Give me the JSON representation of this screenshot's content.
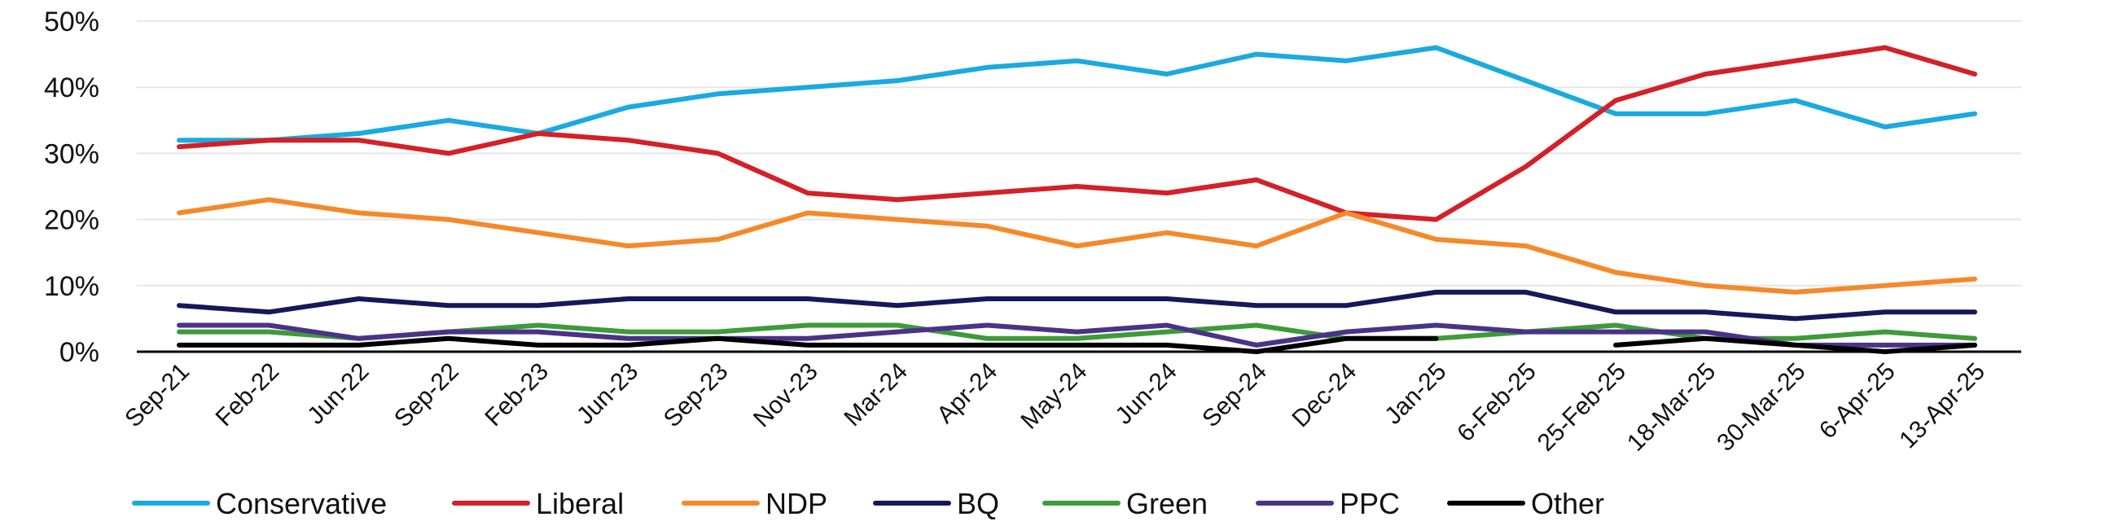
{
  "chart_data": {
    "type": "line",
    "title": "",
    "xlabel": "",
    "ylabel": "",
    "ylim": [
      0,
      50
    ],
    "yticks": [
      "0%",
      "10%",
      "20%",
      "30%",
      "40%",
      "50%"
    ],
    "grid": "horizontal",
    "legend_position": "bottom",
    "categories": [
      "Sep-21",
      "Feb-22",
      "Jun-22",
      "Sep-22",
      "Feb-23",
      "Jun-23",
      "Sep-23",
      "Nov-23",
      "Mar-24",
      "Apr-24",
      "May-24",
      "Jun-24",
      "Sep-24",
      "Dec-24",
      "Jan-25",
      "6-Feb-25",
      "25-Feb-25",
      "18-Mar-25",
      "30-Mar-25",
      "6-Apr-25",
      "13-Apr-25"
    ],
    "series": [
      {
        "name": "Conservative",
        "color": "#1AAAE0",
        "values": [
          32,
          32,
          33,
          35,
          33,
          37,
          39,
          40,
          41,
          43,
          44,
          42,
          45,
          44,
          46,
          41,
          36,
          36,
          38,
          34,
          36
        ]
      },
      {
        "name": "Liberal",
        "color": "#D42027",
        "values": [
          31,
          32,
          32,
          30,
          33,
          32,
          30,
          24,
          23,
          24,
          25,
          24,
          26,
          21,
          20,
          28,
          38,
          42,
          44,
          46,
          42
        ]
      },
      {
        "name": "NDP",
        "color": "#F5892A",
        "values": [
          21,
          23,
          21,
          20,
          18,
          16,
          17,
          21,
          20,
          19,
          16,
          18,
          16,
          21,
          17,
          16,
          12,
          10,
          9,
          10,
          11
        ]
      },
      {
        "name": "BQ",
        "color": "#15185A",
        "values": [
          7,
          6,
          8,
          7,
          7,
          8,
          8,
          8,
          7,
          8,
          8,
          8,
          7,
          7,
          9,
          9,
          6,
          6,
          5,
          6,
          6
        ]
      },
      {
        "name": "Green",
        "color": "#3E9B3A",
        "values": [
          3,
          3,
          2,
          3,
          4,
          3,
          3,
          4,
          4,
          2,
          2,
          3,
          4,
          2,
          2,
          3,
          4,
          2,
          2,
          3,
          2
        ]
      },
      {
        "name": "PPC",
        "color": "#4A3387",
        "values": [
          4,
          4,
          2,
          3,
          3,
          2,
          2,
          2,
          3,
          4,
          3,
          4,
          1,
          3,
          4,
          3,
          3,
          3,
          1,
          1,
          1
        ]
      },
      {
        "name": "Other",
        "color": "#000000",
        "values": [
          1,
          1,
          1,
          2,
          1,
          1,
          2,
          1,
          1,
          1,
          1,
          1,
          0,
          2,
          2,
          null,
          1,
          2,
          1,
          0,
          1
        ]
      }
    ]
  }
}
